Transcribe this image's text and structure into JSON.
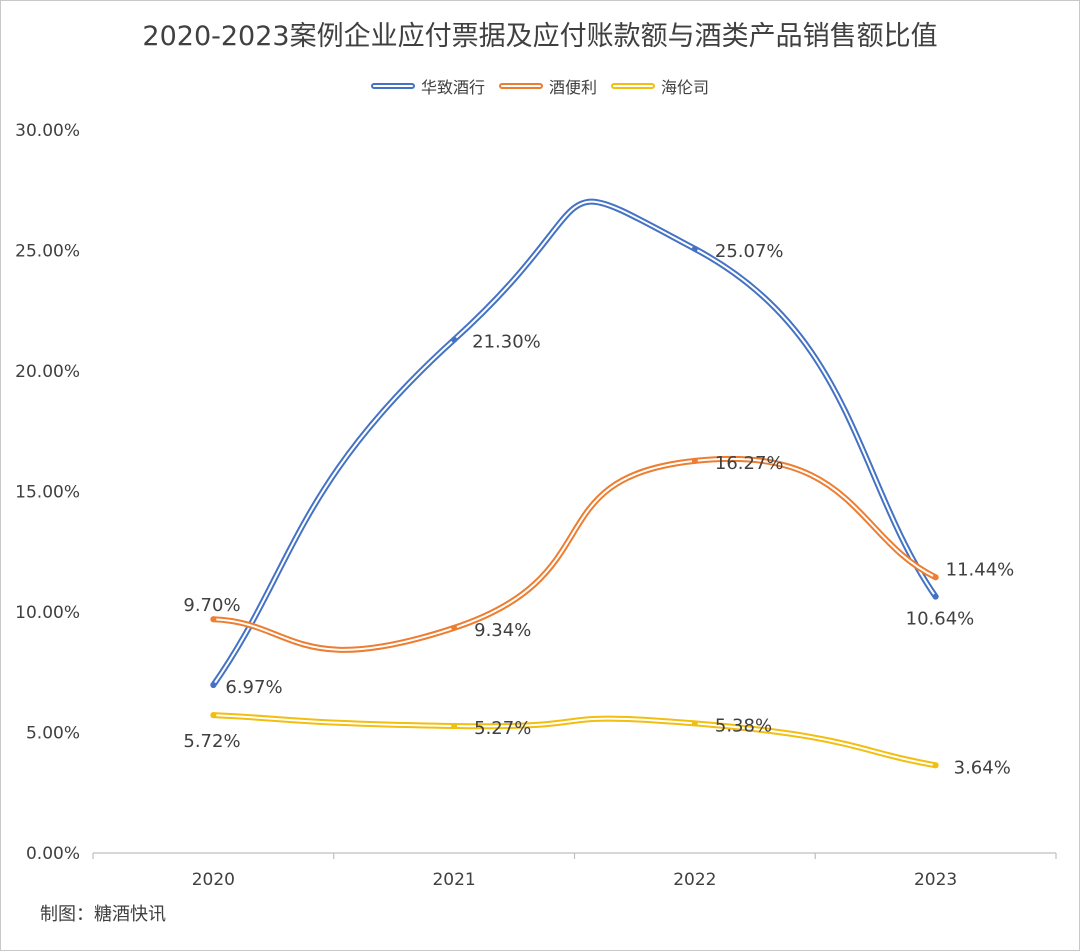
{
  "title": "2020-2023案例企业应付票据及应付账款额与酒类产品销售额比值",
  "source": "制图：糖酒快讯",
  "chart_data": {
    "type": "line",
    "title": "2020-2023案例企业应付票据及应付账款额与酒类产品销售额比值",
    "x": [
      "2020",
      "2021",
      "2022",
      "2023"
    ],
    "ylim": [
      0,
      30
    ],
    "y_ticks": [
      "0.00%",
      "5.00%",
      "10.00%",
      "15.00%",
      "20.00%",
      "25.00%",
      "30.00%"
    ],
    "legend_position": "top",
    "smooth": true,
    "series": [
      {
        "name": "华致酒行",
        "color": "#4472c4",
        "values": [
          6.97,
          21.3,
          25.07,
          10.64
        ],
        "labels": [
          "6.97%",
          "21.30%",
          "25.07%",
          "10.64%"
        ]
      },
      {
        "name": "酒便利",
        "color": "#ed7d31",
        "values": [
          9.7,
          9.34,
          16.27,
          11.44
        ],
        "labels": [
          "9.70%",
          "9.34%",
          "16.27%",
          "11.44%"
        ]
      },
      {
        "name": "海伦司",
        "color": "#f2be0f",
        "values": [
          5.72,
          5.27,
          5.38,
          3.64
        ],
        "labels": [
          "5.72%",
          "5.27%",
          "5.38%",
          "3.64%"
        ]
      }
    ]
  }
}
